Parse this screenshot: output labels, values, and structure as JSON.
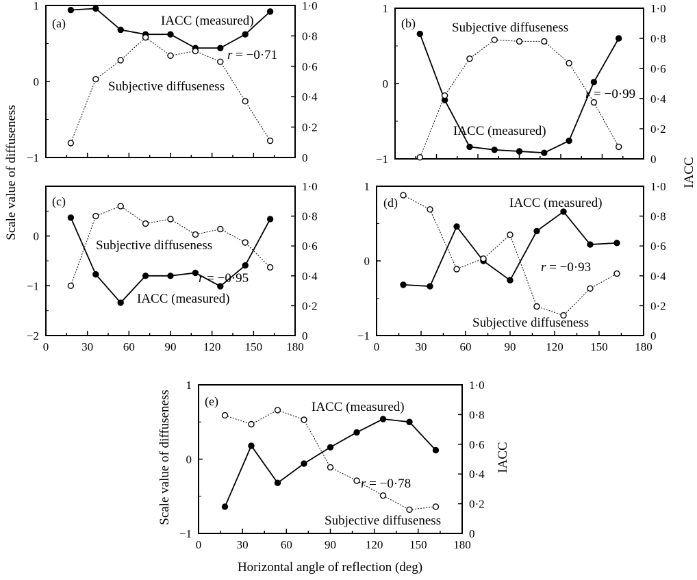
{
  "figure": {
    "ylabel_left": "Scale value of diffuseness",
    "ylabel_right": "IACC",
    "xlabel": "Horizontal angle of reflection (deg)",
    "series_names": [
      "IACC (measured)",
      "Subjective diffuseness"
    ],
    "colors": {
      "iacc": "#000000",
      "diffuseness": "#000000",
      "axis": "#000000"
    }
  },
  "chart_data": [
    {
      "type": "line",
      "panel": "(a)",
      "x": [
        18,
        36,
        54,
        72,
        90,
        108,
        126,
        144,
        162
      ],
      "xlim": [
        0,
        180
      ],
      "xticks": [],
      "ylim_left": [
        -1,
        1
      ],
      "yticks_left": [
        "1",
        "0",
        "−1"
      ],
      "ylim_right": [
        0,
        1
      ],
      "yticks_right": [
        "1·0",
        "0·8",
        "0·6",
        "0·4",
        "0·2",
        "0"
      ],
      "series": [
        {
          "name": "IACC (measured)",
          "axis": "right",
          "marker": "filled",
          "values": [
            0.97,
            0.98,
            0.84,
            0.81,
            0.81,
            0.72,
            0.72,
            0.81,
            0.96
          ]
        },
        {
          "name": "Subjective diffuseness",
          "axis": "left",
          "marker": "open",
          "values": [
            -0.81,
            0.03,
            0.28,
            0.58,
            0.34,
            0.4,
            0.26,
            -0.26,
            -0.78
          ]
        }
      ],
      "annotation": "r = −0·71"
    },
    {
      "type": "line",
      "panel": "(b)",
      "x": [
        18,
        36,
        54,
        72,
        90,
        108,
        126,
        144,
        162
      ],
      "xlim": [
        0,
        180
      ],
      "xticks": [],
      "ylim_left": [
        -1,
        1
      ],
      "yticks_left": [
        "1",
        "0",
        "−1"
      ],
      "ylim_right": [
        0,
        1
      ],
      "yticks_right": [
        "1·0",
        "0·8",
        "0·6",
        "0·4",
        "0·2",
        "0"
      ],
      "series": [
        {
          "name": "IACC (measured)",
          "axis": "right",
          "marker": "filled",
          "values": [
            0.83,
            0.39,
            0.08,
            0.06,
            0.05,
            0.04,
            0.12,
            0.51,
            0.8
          ]
        },
        {
          "name": "Subjective diffuseness",
          "axis": "left",
          "marker": "open",
          "values": [
            -0.98,
            -0.16,
            0.33,
            0.58,
            0.56,
            0.56,
            0.27,
            -0.25,
            -0.84
          ]
        }
      ],
      "annotation": "r = −0·99"
    },
    {
      "type": "line",
      "panel": "(c)",
      "x": [
        18,
        36,
        54,
        72,
        90,
        108,
        126,
        144,
        162
      ],
      "xlim": [
        0,
        180
      ],
      "xticks": [
        "0",
        "30",
        "60",
        "90",
        "120",
        "150",
        "180"
      ],
      "ylim_left": [
        -2,
        1
      ],
      "yticks_left": [
        "0",
        "−1",
        "−2"
      ],
      "ylim_right": [
        0,
        1
      ],
      "yticks_right": [
        "1·0",
        "0·8",
        "0·6",
        "0·4",
        "0·2",
        "0"
      ],
      "series": [
        {
          "name": "IACC (measured)",
          "axis": "right",
          "marker": "filled",
          "values": [
            0.79,
            0.41,
            0.22,
            0.4,
            0.4,
            0.42,
            0.33,
            0.47,
            0.78
          ]
        },
        {
          "name": "Subjective diffuseness",
          "axis": "left",
          "marker": "open",
          "values": [
            -1.0,
            0.4,
            0.6,
            0.25,
            0.34,
            0.03,
            0.14,
            -0.13,
            -0.63
          ]
        }
      ],
      "annotation": "r = −0·95"
    },
    {
      "type": "line",
      "panel": "(d)",
      "x": [
        18,
        36,
        54,
        72,
        90,
        108,
        126,
        144,
        162
      ],
      "xlim": [
        0,
        180
      ],
      "xticks": [
        "0",
        "30",
        "60",
        "90",
        "120",
        "150",
        "180"
      ],
      "ylim_left": [
        -1,
        1
      ],
      "yticks_left": [
        "1",
        "0",
        "−1"
      ],
      "ylim_right": [
        0,
        1
      ],
      "yticks_right": [
        "1·0",
        "0·8",
        "0·6",
        "0·4",
        "0·2",
        "0"
      ],
      "series": [
        {
          "name": "IACC (measured)",
          "axis": "right",
          "marker": "filled",
          "values": [
            0.34,
            0.33,
            0.73,
            0.5,
            0.37,
            0.7,
            0.83,
            0.61,
            0.62
          ]
        },
        {
          "name": "Subjective diffuseness",
          "axis": "left",
          "marker": "open",
          "values": [
            0.88,
            0.69,
            -0.11,
            0.03,
            0.35,
            -0.61,
            -0.73,
            -0.37,
            -0.17
          ]
        }
      ],
      "annotation": "r = −0·93"
    },
    {
      "type": "line",
      "panel": "(e)",
      "x": [
        18,
        36,
        54,
        72,
        90,
        108,
        126,
        144,
        162
      ],
      "xlim": [
        0,
        180
      ],
      "xticks": [
        "0",
        "30",
        "60",
        "90",
        "120",
        "150",
        "180"
      ],
      "ylim_left": [
        -1,
        1
      ],
      "yticks_left": [
        "1",
        "0",
        "−1"
      ],
      "ylim_right": [
        0,
        1
      ],
      "yticks_right": [
        "1·0",
        "0·8",
        "0·6",
        "0·4",
        "0·2",
        "0"
      ],
      "series": [
        {
          "name": "IACC (measured)",
          "axis": "right",
          "marker": "filled",
          "values": [
            0.18,
            0.59,
            0.34,
            0.47,
            0.58,
            0.68,
            0.77,
            0.75,
            0.56
          ]
        },
        {
          "name": "Subjective diffuseness",
          "axis": "left",
          "marker": "open",
          "values": [
            0.59,
            0.47,
            0.66,
            0.53,
            -0.11,
            -0.29,
            -0.49,
            -0.68,
            -0.64
          ]
        }
      ],
      "annotation": "r = −0·78"
    }
  ]
}
